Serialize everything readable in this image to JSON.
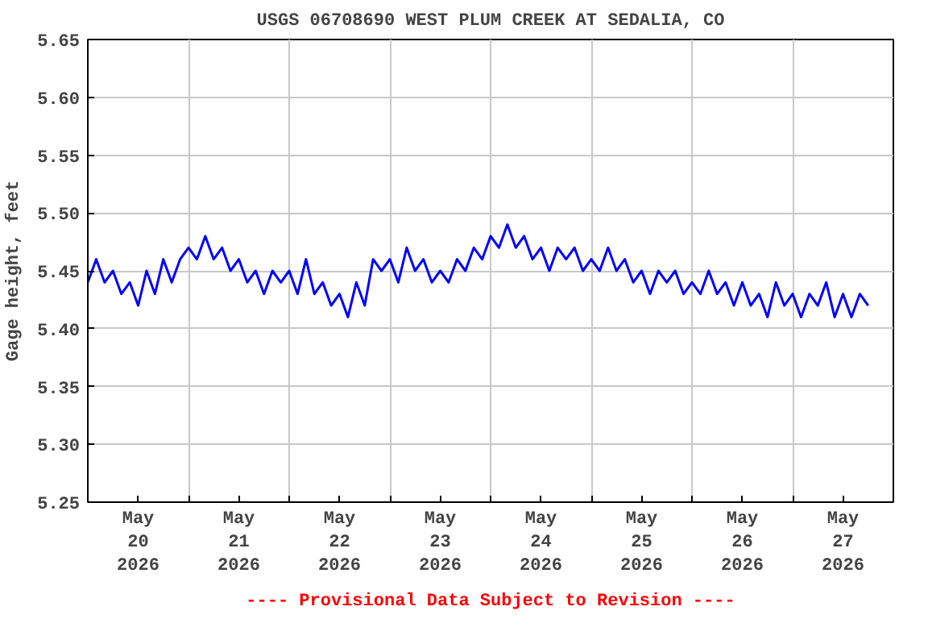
{
  "chart_data": {
    "type": "line",
    "title": "USGS 06708690 WEST PLUM CREEK AT SEDALIA, CO",
    "ylabel": "Gage height, feet",
    "annotations": [
      "---- Provisional Data Subject to Revision ----"
    ],
    "xlim": [
      "2026-05-20T00:00",
      "2026-05-28T00:00"
    ],
    "xticks": [
      {
        "value": "2026-05-20T00:00",
        "label": null
      },
      {
        "value": "2026-05-20T12:00",
        "label": "May\n20\n2026"
      },
      {
        "value": "2026-05-21T00:00",
        "label": null
      },
      {
        "value": "2026-05-21T12:00",
        "label": "May\n21\n2026"
      },
      {
        "value": "2026-05-22T00:00",
        "label": null
      },
      {
        "value": "2026-05-22T12:00",
        "label": "May\n22\n2026"
      },
      {
        "value": "2026-05-23T00:00",
        "label": null
      },
      {
        "value": "2026-05-23T12:00",
        "label": "May\n23\n2026"
      },
      {
        "value": "2026-05-24T00:00",
        "label": null
      },
      {
        "value": "2026-05-24T12:00",
        "label": "May\n24\n2026"
      },
      {
        "value": "2026-05-25T00:00",
        "label": null
      },
      {
        "value": "2026-05-25T12:00",
        "label": "May\n25\n2026"
      },
      {
        "value": "2026-05-26T00:00",
        "label": null
      },
      {
        "value": "2026-05-26T12:00",
        "label": "May\n26\n2026"
      },
      {
        "value": "2026-05-27T00:00",
        "label": null
      },
      {
        "value": "2026-05-27T12:00",
        "label": "May\n27\n2026"
      },
      {
        "value": "2026-05-28T00:00",
        "label": null
      }
    ],
    "ylim": [
      5.25,
      5.65
    ],
    "yticks": [
      {
        "value": 5.25,
        "label": "5.25"
      },
      {
        "value": 5.3,
        "label": "5.30"
      },
      {
        "value": 5.35,
        "label": "5.35"
      },
      {
        "value": 5.4,
        "label": "5.40"
      },
      {
        "value": 5.45,
        "label": "5.45"
      },
      {
        "value": 5.5,
        "label": "5.50"
      },
      {
        "value": 5.55,
        "label": "5.55"
      },
      {
        "value": 5.6,
        "label": "5.60"
      },
      {
        "value": 5.65,
        "label": "5.65"
      }
    ],
    "grid": true,
    "series": [
      {
        "color": "#0000ff",
        "x": [
          "2026-05-20T00:00",
          "2026-05-20T02:00",
          "2026-05-20T04:00",
          "2026-05-20T06:00",
          "2026-05-20T08:00",
          "2026-05-20T10:00",
          "2026-05-20T12:00",
          "2026-05-20T14:00",
          "2026-05-20T16:00",
          "2026-05-20T18:00",
          "2026-05-20T20:00",
          "2026-05-20T22:00",
          "2026-05-21T00:00",
          "2026-05-21T02:00",
          "2026-05-21T04:00",
          "2026-05-21T06:00",
          "2026-05-21T08:00",
          "2026-05-21T10:00",
          "2026-05-21T12:00",
          "2026-05-21T14:00",
          "2026-05-21T16:00",
          "2026-05-21T18:00",
          "2026-05-21T20:00",
          "2026-05-21T22:00",
          "2026-05-22T00:00",
          "2026-05-22T02:00",
          "2026-05-22T04:00",
          "2026-05-22T06:00",
          "2026-05-22T08:00",
          "2026-05-22T10:00",
          "2026-05-22T12:00",
          "2026-05-22T14:00",
          "2026-05-22T16:00",
          "2026-05-22T18:00",
          "2026-05-22T20:00",
          "2026-05-22T22:00",
          "2026-05-23T00:00",
          "2026-05-23T02:00",
          "2026-05-23T04:00",
          "2026-05-23T06:00",
          "2026-05-23T08:00",
          "2026-05-23T10:00",
          "2026-05-23T12:00",
          "2026-05-23T14:00",
          "2026-05-23T16:00",
          "2026-05-23T18:00",
          "2026-05-23T20:00",
          "2026-05-23T22:00",
          "2026-05-24T00:00",
          "2026-05-24T02:00",
          "2026-05-24T04:00",
          "2026-05-24T06:00",
          "2026-05-24T08:00",
          "2026-05-24T10:00",
          "2026-05-24T12:00",
          "2026-05-24T14:00",
          "2026-05-24T16:00",
          "2026-05-24T18:00",
          "2026-05-24T20:00",
          "2026-05-24T22:00",
          "2026-05-25T00:00",
          "2026-05-25T02:00",
          "2026-05-25T04:00",
          "2026-05-25T06:00",
          "2026-05-25T08:00",
          "2026-05-25T10:00",
          "2026-05-25T12:00",
          "2026-05-25T14:00",
          "2026-05-25T16:00",
          "2026-05-25T18:00",
          "2026-05-25T20:00",
          "2026-05-25T22:00",
          "2026-05-26T00:00",
          "2026-05-26T02:00",
          "2026-05-26T04:00",
          "2026-05-26T06:00",
          "2026-05-26T08:00",
          "2026-05-26T10:00",
          "2026-05-26T12:00",
          "2026-05-26T14:00",
          "2026-05-26T16:00",
          "2026-05-26T18:00",
          "2026-05-26T20:00",
          "2026-05-26T22:00",
          "2026-05-27T00:00",
          "2026-05-27T02:00",
          "2026-05-27T04:00",
          "2026-05-27T06:00",
          "2026-05-27T08:00",
          "2026-05-27T10:00",
          "2026-05-27T12:00",
          "2026-05-27T14:00",
          "2026-05-27T16:00",
          "2026-05-27T18:00"
        ],
        "values": [
          5.44,
          5.46,
          5.44,
          5.45,
          5.43,
          5.44,
          5.42,
          5.45,
          5.43,
          5.46,
          5.44,
          5.46,
          5.47,
          5.46,
          5.48,
          5.46,
          5.47,
          5.45,
          5.46,
          5.44,
          5.45,
          5.43,
          5.45,
          5.44,
          5.45,
          5.43,
          5.46,
          5.43,
          5.44,
          5.42,
          5.43,
          5.41,
          5.44,
          5.42,
          5.46,
          5.45,
          5.46,
          5.44,
          5.47,
          5.45,
          5.46,
          5.44,
          5.45,
          5.44,
          5.46,
          5.45,
          5.47,
          5.46,
          5.48,
          5.47,
          5.49,
          5.47,
          5.48,
          5.46,
          5.47,
          5.45,
          5.47,
          5.46,
          5.47,
          5.45,
          5.46,
          5.45,
          5.47,
          5.45,
          5.46,
          5.44,
          5.45,
          5.43,
          5.45,
          5.44,
          5.45,
          5.43,
          5.44,
          5.43,
          5.45,
          5.43,
          5.44,
          5.42,
          5.44,
          5.42,
          5.43,
          5.41,
          5.44,
          5.42,
          5.43,
          5.41,
          5.43,
          5.42,
          5.44,
          5.41,
          5.43,
          5.41,
          5.43,
          5.42
        ]
      }
    ]
  }
}
